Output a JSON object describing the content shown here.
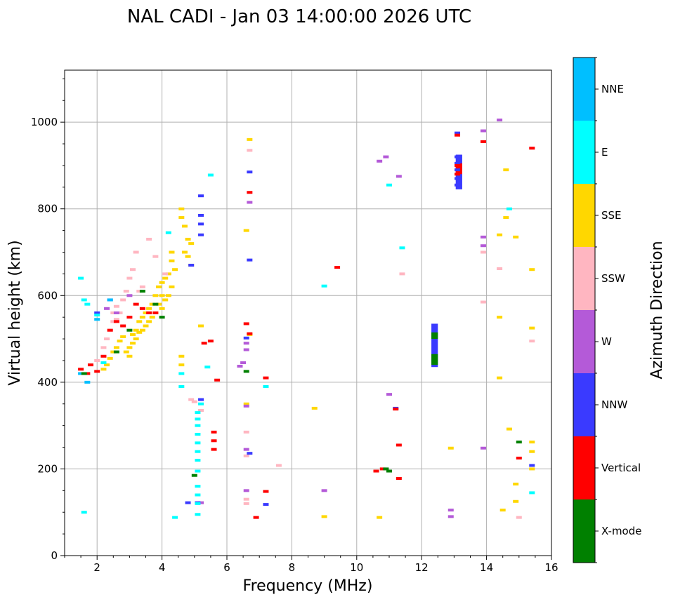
{
  "chart_data": {
    "type": "scatter",
    "title": "NAL CADI - Jan 03 14:00:00 2026 UTC",
    "xlabel": "Frequency (MHz)",
    "ylabel": "Virtual height (km)",
    "xlim": [
      1,
      16
    ],
    "ylim": [
      0,
      1120
    ],
    "xticks": [
      2,
      4,
      6,
      8,
      10,
      12,
      14,
      16
    ],
    "yticks": [
      0,
      200,
      400,
      600,
      800,
      1000
    ],
    "grid": true,
    "colorbar": {
      "label": "Azimuth Direction",
      "position": "right",
      "categories": [
        "X-mode",
        "Vertical",
        "NNW",
        "W",
        "SSW",
        "SSE",
        "E",
        "NNE"
      ],
      "colors": [
        "#008000",
        "#ff0000",
        "#3a3aff",
        "#b45ad8",
        "#ffb6c1",
        "#ffd700",
        "#00ffff",
        "#00bfff"
      ]
    },
    "series": [
      {
        "name": "SSE",
        "color": "#ffd700",
        "points": [
          [
            2.2,
            430
          ],
          [
            2.3,
            440
          ],
          [
            2.4,
            455
          ],
          [
            2.5,
            470
          ],
          [
            2.6,
            480
          ],
          [
            2.7,
            495
          ],
          [
            2.8,
            505
          ],
          [
            2.9,
            470
          ],
          [
            3.0,
            460
          ],
          [
            3.0,
            480
          ],
          [
            3.1,
            490
          ],
          [
            3.1,
            510
          ],
          [
            3.2,
            500
          ],
          [
            3.2,
            520
          ],
          [
            3.3,
            515
          ],
          [
            3.3,
            540
          ],
          [
            3.4,
            520
          ],
          [
            3.4,
            550
          ],
          [
            3.5,
            530
          ],
          [
            3.5,
            560
          ],
          [
            3.6,
            540
          ],
          [
            3.6,
            570
          ],
          [
            3.7,
            550
          ],
          [
            3.7,
            580
          ],
          [
            3.8,
            560
          ],
          [
            3.8,
            600
          ],
          [
            3.9,
            580
          ],
          [
            3.9,
            620
          ],
          [
            4.0,
            570
          ],
          [
            4.0,
            600
          ],
          [
            4.0,
            630
          ],
          [
            4.1,
            590
          ],
          [
            4.1,
            640
          ],
          [
            4.2,
            600
          ],
          [
            4.2,
            650
          ],
          [
            4.3,
            620
          ],
          [
            4.3,
            680
          ],
          [
            4.3,
            700
          ],
          [
            4.4,
            660
          ],
          [
            4.6,
            780
          ],
          [
            4.6,
            800
          ],
          [
            4.7,
            700
          ],
          [
            4.7,
            760
          ],
          [
            4.8,
            730
          ],
          [
            4.8,
            690
          ],
          [
            4.9,
            670
          ],
          [
            4.9,
            720
          ],
          [
            4.6,
            440
          ],
          [
            4.6,
            460
          ],
          [
            5.2,
            530
          ],
          [
            6.6,
            750
          ],
          [
            6.7,
            960
          ],
          [
            6.7,
            510
          ],
          [
            6.6,
            350
          ],
          [
            8.7,
            340
          ],
          [
            9.0,
            90
          ],
          [
            10.7,
            88
          ],
          [
            12.9,
            248
          ],
          [
            14.4,
            740
          ],
          [
            14.4,
            550
          ],
          [
            14.4,
            410
          ],
          [
            14.5,
            105
          ],
          [
            14.6,
            890
          ],
          [
            14.6,
            780
          ],
          [
            14.7,
            292
          ],
          [
            14.9,
            735
          ],
          [
            14.9,
            165
          ],
          [
            14.9,
            125
          ],
          [
            15.4,
            660
          ],
          [
            15.4,
            525
          ],
          [
            15.4,
            262
          ],
          [
            15.4,
            240
          ],
          [
            15.4,
            200
          ]
        ]
      },
      {
        "name": "SSW",
        "color": "#ffb6c1",
        "points": [
          [
            2.0,
            450
          ],
          [
            2.2,
            480
          ],
          [
            2.3,
            500
          ],
          [
            2.4,
            520
          ],
          [
            2.5,
            540
          ],
          [
            2.5,
            560
          ],
          [
            2.6,
            545
          ],
          [
            2.6,
            575
          ],
          [
            2.7,
            560
          ],
          [
            2.8,
            590
          ],
          [
            2.9,
            610
          ],
          [
            3.0,
            640
          ],
          [
            3.1,
            660
          ],
          [
            3.2,
            700
          ],
          [
            3.3,
            610
          ],
          [
            3.4,
            620
          ],
          [
            3.6,
            730
          ],
          [
            3.8,
            690
          ],
          [
            4.1,
            650
          ],
          [
            4.9,
            360
          ],
          [
            5.0,
            355
          ],
          [
            5.2,
            335
          ],
          [
            6.6,
            285
          ],
          [
            6.6,
            230
          ],
          [
            6.6,
            130
          ],
          [
            6.6,
            120
          ],
          [
            6.7,
            935
          ],
          [
            7.6,
            208
          ],
          [
            11.4,
            650
          ],
          [
            13.9,
            585
          ],
          [
            13.9,
            700
          ],
          [
            14.4,
            662
          ],
          [
            15.0,
            88
          ],
          [
            15.4,
            940
          ],
          [
            15.4,
            495
          ]
        ]
      },
      {
        "name": "W",
        "color": "#b45ad8",
        "points": [
          [
            2.3,
            570
          ],
          [
            2.6,
            560
          ],
          [
            3.0,
            600
          ],
          [
            6.4,
            437
          ],
          [
            6.5,
            445
          ],
          [
            6.6,
            490
          ],
          [
            6.6,
            475
          ],
          [
            6.6,
            345
          ],
          [
            6.6,
            245
          ],
          [
            6.6,
            150
          ],
          [
            6.7,
            815
          ],
          [
            9.0,
            150
          ],
          [
            10.7,
            910
          ],
          [
            10.9,
            920
          ],
          [
            11.0,
            372
          ],
          [
            11.3,
            875
          ],
          [
            12.9,
            105
          ],
          [
            12.9,
            90
          ],
          [
            13.9,
            980
          ],
          [
            13.9,
            735
          ],
          [
            13.9,
            715
          ],
          [
            13.9,
            248
          ],
          [
            14.4,
            1005
          ],
          [
            5.2,
            122
          ]
        ]
      },
      {
        "name": "NNW",
        "color": "#3a3aff",
        "points": [
          [
            2.0,
            560
          ],
          [
            2.4,
            590
          ],
          [
            5.2,
            830
          ],
          [
            5.2,
            785
          ],
          [
            5.2,
            765
          ],
          [
            5.2,
            740
          ],
          [
            4.9,
            670
          ],
          [
            6.6,
            502
          ],
          [
            6.7,
            885
          ],
          [
            6.7,
            682
          ],
          [
            5.2,
            360
          ],
          [
            6.7,
            236
          ],
          [
            7.2,
            118
          ],
          [
            11.2,
            340
          ],
          [
            13.1,
            975
          ],
          [
            13.1,
            920
          ],
          [
            13.1,
            905
          ],
          [
            13.1,
            890
          ],
          [
            13.1,
            870
          ],
          [
            13.1,
            855
          ],
          [
            15.4,
            208
          ],
          [
            4.8,
            122
          ],
          [
            5.1,
            122
          ]
        ]
      },
      {
        "name": "Vertical",
        "color": "#ff0000",
        "points": [
          [
            1.5,
            430
          ],
          [
            1.7,
            420
          ],
          [
            1.8,
            440
          ],
          [
            2.0,
            425
          ],
          [
            2.2,
            460
          ],
          [
            2.4,
            520
          ],
          [
            2.6,
            540
          ],
          [
            2.8,
            530
          ],
          [
            3.0,
            550
          ],
          [
            3.2,
            580
          ],
          [
            3.4,
            570
          ],
          [
            3.6,
            560
          ],
          [
            3.8,
            560
          ],
          [
            5.3,
            490
          ],
          [
            5.5,
            495
          ],
          [
            5.6,
            285
          ],
          [
            5.6,
            265
          ],
          [
            5.6,
            245
          ],
          [
            5.7,
            405
          ],
          [
            6.7,
            838
          ],
          [
            6.6,
            535
          ],
          [
            6.7,
            512
          ],
          [
            6.9,
            88
          ],
          [
            7.2,
            410
          ],
          [
            7.2,
            148
          ],
          [
            9.4,
            665
          ],
          [
            10.6,
            195
          ],
          [
            10.8,
            200
          ],
          [
            11.2,
            338
          ],
          [
            11.3,
            255
          ],
          [
            11.3,
            178
          ],
          [
            13.1,
            970
          ],
          [
            13.1,
            880
          ],
          [
            13.1,
            900
          ],
          [
            13.9,
            955
          ],
          [
            15.0,
            225
          ],
          [
            15.4,
            940
          ]
        ]
      },
      {
        "name": "E",
        "color": "#00ffff",
        "points": [
          [
            1.5,
            640
          ],
          [
            1.6,
            590
          ],
          [
            1.7,
            580
          ],
          [
            2.0,
            555
          ],
          [
            2.2,
            445
          ],
          [
            4.2,
            745
          ],
          [
            4.6,
            420
          ],
          [
            4.6,
            390
          ],
          [
            5.2,
            350
          ],
          [
            5.1,
            330
          ],
          [
            5.1,
            315
          ],
          [
            5.1,
            300
          ],
          [
            5.1,
            280
          ],
          [
            5.1,
            260
          ],
          [
            5.1,
            240
          ],
          [
            5.1,
            220
          ],
          [
            5.1,
            195
          ],
          [
            5.1,
            160
          ],
          [
            5.1,
            140
          ],
          [
            5.1,
            120
          ],
          [
            5.1,
            95
          ],
          [
            5.4,
            435
          ],
          [
            5.5,
            878
          ],
          [
            7.2,
            390
          ],
          [
            9.0,
            622
          ],
          [
            11.0,
            855
          ],
          [
            11.4,
            710
          ],
          [
            14.7,
            800
          ],
          [
            15.4,
            145
          ],
          [
            4.4,
            88
          ],
          [
            1.6,
            100
          ]
        ]
      },
      {
        "name": "NNE",
        "color": "#00bfff",
        "points": [
          [
            1.7,
            400
          ],
          [
            2.0,
            545
          ],
          [
            2.4,
            590
          ],
          [
            1.5,
            420
          ]
        ]
      },
      {
        "name": "X-mode",
        "color": "#008000",
        "points": [
          [
            1.6,
            420
          ],
          [
            2.6,
            470
          ],
          [
            3.0,
            520
          ],
          [
            3.4,
            610
          ],
          [
            3.8,
            580
          ],
          [
            4.0,
            550
          ],
          [
            5.0,
            185
          ],
          [
            6.6,
            425
          ],
          [
            10.9,
            200
          ],
          [
            11.0,
            195
          ],
          [
            15.0,
            262
          ]
        ]
      }
    ],
    "annotations": [
      {
        "label": "block",
        "color": "#3a3aff",
        "x": [
          12.3,
          12.5
        ],
        "y": [
          435,
          535
        ]
      },
      {
        "label": "block",
        "color": "#008000",
        "x": [
          12.3,
          12.5
        ],
        "y": [
          440,
          465
        ]
      },
      {
        "label": "block",
        "color": "#008000",
        "x": [
          12.3,
          12.5
        ],
        "y": [
          500,
          515
        ]
      },
      {
        "label": "block",
        "color": "#3a3aff",
        "x": [
          13.05,
          13.25
        ],
        "y": [
          845,
          925
        ]
      },
      {
        "label": "block",
        "color": "#ff0000",
        "x": [
          13.05,
          13.25
        ],
        "y": [
          880,
          905
        ]
      }
    ]
  }
}
